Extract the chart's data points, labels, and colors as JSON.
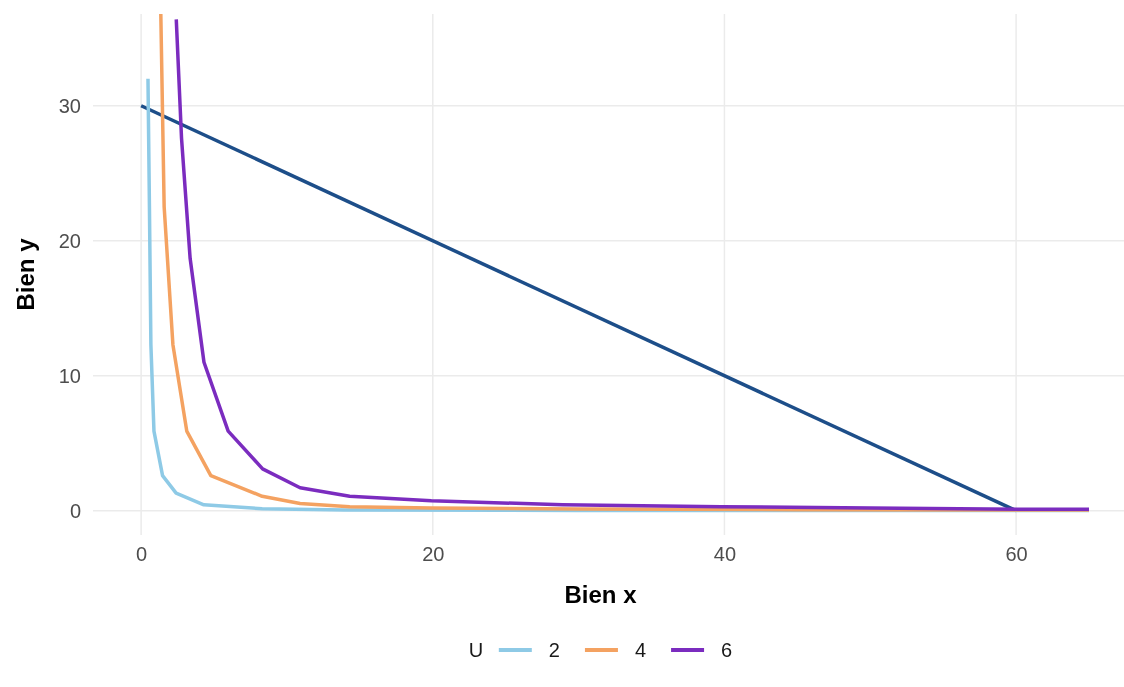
{
  "chart_data": {
    "type": "line",
    "xlabel": "Bien x",
    "ylabel": "Bien y",
    "legend_title": "U",
    "legend": "bottom",
    "grid": true,
    "line_style": "solid",
    "marker": "none",
    "xlim": [
      -3.3,
      67.4
    ],
    "ylim": [
      -1.8,
      36.8
    ],
    "xticks": [
      0,
      20,
      40,
      60
    ],
    "yticks": [
      0,
      10,
      20,
      30
    ],
    "series": [
      {
        "x": [
          0,
          60
        ],
        "values": [
          30,
          0
        ],
        "color": "#1d4e89"
      },
      {
        "name": "2",
        "color": "#8ecae6",
        "x": [
          0.47,
          0.57,
          0.67,
          0.88,
          1.47,
          2.4,
          4.3,
          8.3,
          14,
          30,
          65
        ],
        "values": [
          32,
          22.5,
          12.3,
          5.9,
          2.6,
          1.3,
          0.44,
          0.15,
          0.05,
          0.02,
          0.01
        ]
      },
      {
        "name": "4",
        "color": "#f4a261",
        "x": [
          1.35,
          1.58,
          2.18,
          3.13,
          4.78,
          8.3,
          10.9,
          14.3,
          19.9,
          30,
          45,
          65
        ],
        "values": [
          36.8,
          22.5,
          12.3,
          5.9,
          2.6,
          1.07,
          0.54,
          0.3,
          0.2,
          0.12,
          0.08,
          0.05
        ]
      },
      {
        "name": "6",
        "color": "#7b2cbf",
        "x": [
          2.41,
          2.77,
          3.36,
          4.31,
          5.97,
          8.33,
          10.9,
          14.3,
          19.9,
          28.9,
          39.8,
          50,
          60.4,
          65
        ],
        "values": [
          36.4,
          27.6,
          18.7,
          11,
          5.9,
          3.1,
          1.7,
          1.07,
          0.74,
          0.44,
          0.3,
          0.2,
          0.11,
          0.1
        ]
      }
    ]
  }
}
